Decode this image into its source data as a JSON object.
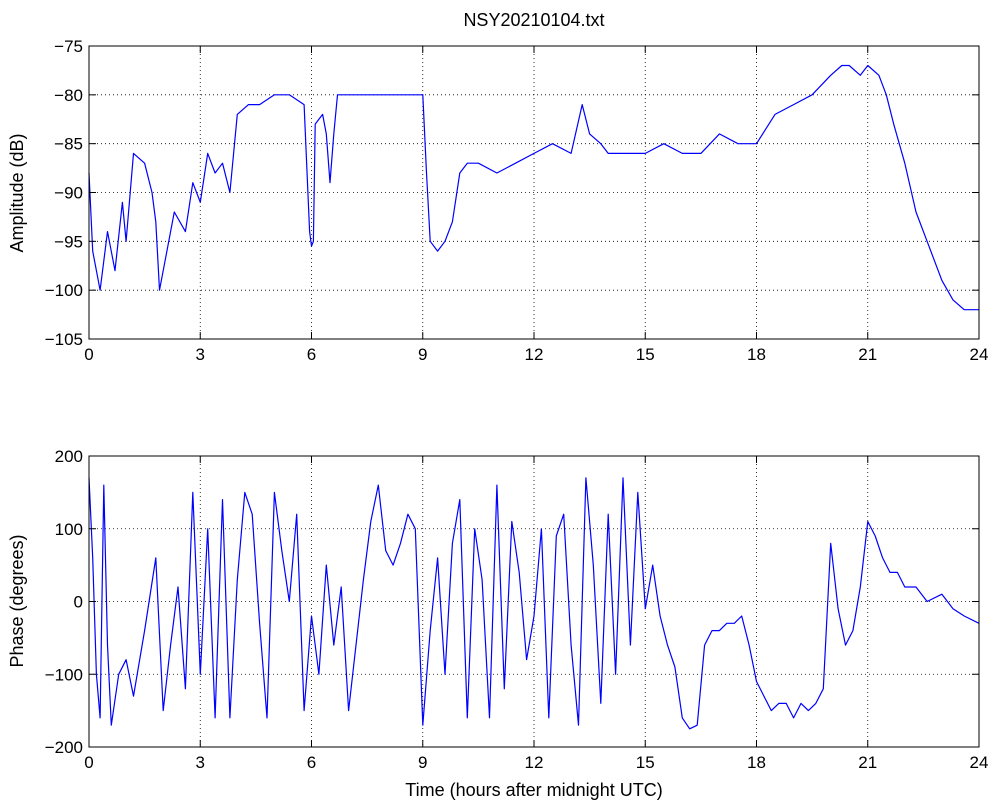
{
  "chart_data": [
    {
      "type": "line",
      "title": "NSY20210104.txt",
      "xlabel": "",
      "ylabel": "Amplitude (dB)",
      "xlim": [
        0,
        24
      ],
      "ylim": [
        -105,
        -75
      ],
      "xticks": [
        0,
        3,
        6,
        9,
        12,
        15,
        18,
        21,
        24
      ],
      "yticks": [
        -105,
        -100,
        -95,
        -90,
        -85,
        -80,
        -75
      ],
      "grid": "dotted",
      "line_color": "#0000ff",
      "series": [
        {
          "x": [
            0,
            0.1,
            0.3,
            0.5,
            0.7,
            0.9,
            1.0,
            1.2,
            1.5,
            1.7,
            1.8,
            1.9,
            2.1,
            2.3,
            2.6,
            2.8,
            3.0,
            3.2,
            3.4,
            3.6,
            3.8,
            3.9,
            4.0,
            4.3,
            4.6,
            5.0,
            5.4,
            5.8,
            5.95,
            6.0,
            6.05,
            6.1,
            6.3,
            6.4,
            6.5,
            6.6,
            6.7,
            6.8,
            7.0,
            7.5,
            8.0,
            8.5,
            9.0,
            9.1,
            9.2,
            9.4,
            9.6,
            9.8,
            10.0,
            10.2,
            10.5,
            11.0,
            11.5,
            12.0,
            12.5,
            13.0,
            13.3,
            13.5,
            13.8,
            14.0,
            14.5,
            15.0,
            15.5,
            16.0,
            16.5,
            17.0,
            17.5,
            18.0,
            18.5,
            19.0,
            19.5,
            20.0,
            20.3,
            20.5,
            20.8,
            21.0,
            21.3,
            21.5,
            21.7,
            22.0,
            22.3,
            22.6,
            23.0,
            23.3,
            23.6,
            24.0
          ],
          "y": [
            -88,
            -96,
            -100,
            -94,
            -98,
            -91,
            -95,
            -86,
            -87,
            -90,
            -93,
            -100,
            -96,
            -92,
            -94,
            -89,
            -91,
            -86,
            -88,
            -87,
            -90,
            -86,
            -82,
            -81,
            -81,
            -80,
            -80,
            -81,
            -94,
            -95.5,
            -95,
            -83,
            -82,
            -84,
            -89,
            -84,
            -80,
            -80,
            -80,
            -80,
            -80,
            -80,
            -80,
            -88,
            -95,
            -96,
            -95,
            -93,
            -88,
            -87,
            -87,
            -88,
            -87,
            -86,
            -85,
            -86,
            -81,
            -84,
            -85,
            -86,
            -86,
            -86,
            -85,
            -86,
            -86,
            -84,
            -85,
            -85,
            -82,
            -81,
            -80,
            -78,
            -77,
            -77,
            -78,
            -77,
            -78,
            -80,
            -83,
            -87,
            -92,
            -95,
            -99,
            -101,
            -102,
            -102
          ]
        }
      ]
    },
    {
      "type": "line",
      "title": "",
      "xlabel": "Time (hours after midnight UTC)",
      "ylabel": "Phase (degrees)",
      "xlim": [
        0,
        24
      ],
      "ylim": [
        -200,
        200
      ],
      "xticks": [
        0,
        3,
        6,
        9,
        12,
        15,
        18,
        21,
        24
      ],
      "yticks": [
        -200,
        -100,
        0,
        100,
        200
      ],
      "grid": "dotted",
      "line_color": "#0000ff",
      "series": [
        {
          "x": [
            0,
            0.1,
            0.2,
            0.3,
            0.4,
            0.5,
            0.6,
            0.8,
            1.0,
            1.2,
            1.5,
            1.8,
            2.0,
            2.2,
            2.4,
            2.6,
            2.8,
            3.0,
            3.2,
            3.4,
            3.6,
            3.8,
            4.0,
            4.2,
            4.4,
            4.6,
            4.8,
            5.0,
            5.2,
            5.4,
            5.6,
            5.8,
            6.0,
            6.2,
            6.4,
            6.6,
            6.8,
            7.0,
            7.2,
            7.4,
            7.6,
            7.8,
            8.0,
            8.2,
            8.4,
            8.6,
            8.8,
            9.0,
            9.2,
            9.4,
            9.6,
            9.8,
            10.0,
            10.2,
            10.4,
            10.6,
            10.8,
            11.0,
            11.2,
            11.4,
            11.6,
            11.8,
            12.0,
            12.2,
            12.4,
            12.6,
            12.8,
            13.0,
            13.2,
            13.4,
            13.6,
            13.8,
            14.0,
            14.2,
            14.4,
            14.6,
            14.8,
            15.0,
            15.2,
            15.4,
            15.6,
            15.8,
            16.0,
            16.2,
            16.4,
            16.6,
            16.8,
            17.0,
            17.2,
            17.4,
            17.6,
            17.8,
            18.0,
            18.2,
            18.4,
            18.6,
            18.8,
            19.0,
            19.2,
            19.4,
            19.6,
            19.8,
            20.0,
            20.2,
            20.4,
            20.6,
            20.8,
            21.0,
            21.2,
            21.4,
            21.6,
            21.8,
            22.0,
            22.3,
            22.6,
            23.0,
            23.3,
            23.6,
            24.0
          ],
          "y": [
            170,
            60,
            -100,
            -160,
            160,
            -60,
            -170,
            -100,
            -80,
            -130,
            -40,
            60,
            -150,
            -60,
            20,
            -120,
            150,
            -100,
            100,
            -160,
            140,
            -160,
            30,
            150,
            120,
            -30,
            -160,
            150,
            70,
            0,
            120,
            -150,
            -20,
            -100,
            50,
            -60,
            20,
            -150,
            -60,
            30,
            110,
            160,
            70,
            50,
            80,
            120,
            100,
            -170,
            -40,
            60,
            -100,
            80,
            140,
            -160,
            100,
            30,
            -160,
            160,
            -120,
            110,
            40,
            -80,
            -20,
            100,
            -160,
            90,
            120,
            -60,
            -170,
            170,
            50,
            -140,
            120,
            -100,
            170,
            -60,
            150,
            -10,
            50,
            -20,
            -60,
            -90,
            -160,
            -175,
            -170,
            -60,
            -40,
            -40,
            -30,
            -30,
            -20,
            -60,
            -110,
            -130,
            -150,
            -140,
            -140,
            -160,
            -140,
            -150,
            -140,
            -120,
            80,
            -10,
            -60,
            -40,
            20,
            110,
            90,
            60,
            40,
            40,
            20,
            20,
            0,
            10,
            -10,
            -20,
            -30
          ]
        }
      ]
    }
  ]
}
